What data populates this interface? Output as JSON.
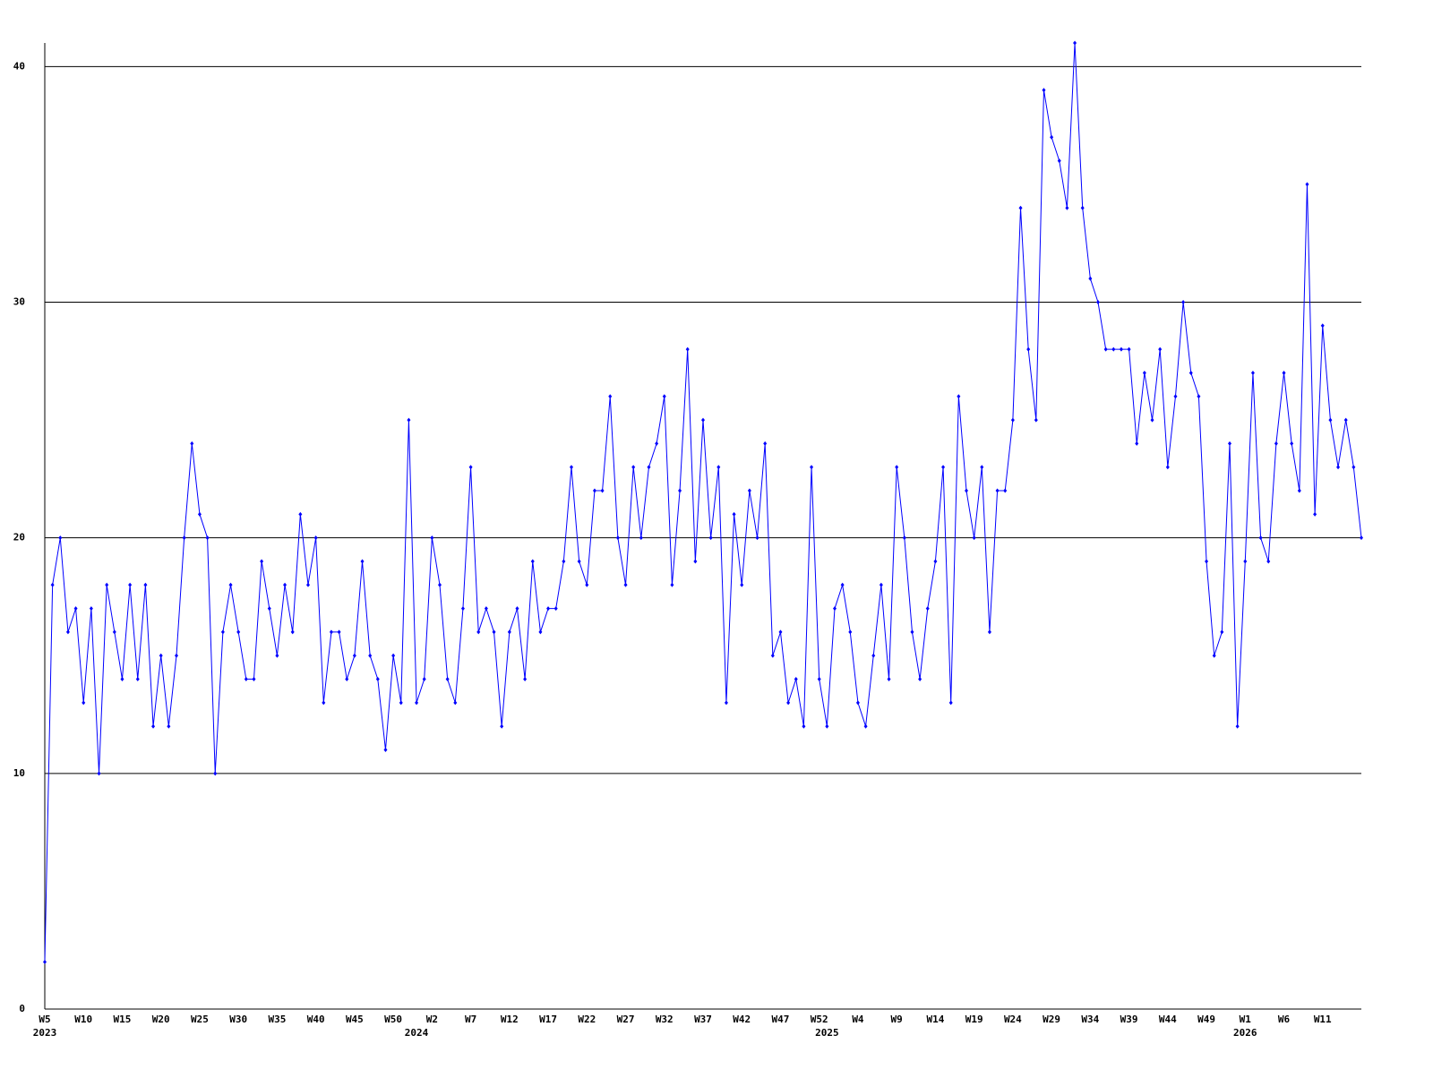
{
  "chart_data": {
    "type": "line",
    "categories": [
      "W5",
      null,
      null,
      null,
      null,
      "W10",
      null,
      null,
      null,
      null,
      "W15",
      null,
      null,
      null,
      null,
      "W20",
      null,
      null,
      null,
      null,
      "W25",
      null,
      null,
      null,
      null,
      "W30",
      null,
      null,
      null,
      null,
      "W35",
      null,
      null,
      null,
      null,
      "W40",
      null,
      null,
      null,
      null,
      "W45",
      null,
      null,
      null,
      null,
      "W50",
      null,
      null,
      null,
      null,
      "W2",
      null,
      null,
      null,
      null,
      "W7",
      null,
      null,
      null,
      null,
      "W12",
      null,
      null,
      null,
      null,
      "W17",
      null,
      null,
      null,
      null,
      "W22",
      null,
      null,
      null,
      null,
      "W27",
      null,
      null,
      null,
      null,
      "W32",
      null,
      null,
      null,
      null,
      "W37",
      null,
      null,
      null,
      null,
      "W42",
      null,
      null,
      null,
      null,
      "W47",
      null,
      null,
      null,
      null,
      "W52",
      null,
      null,
      null,
      null,
      "W4",
      null,
      null,
      null,
      null,
      "W9",
      null,
      null,
      null,
      null,
      "W14",
      null,
      null,
      null,
      null,
      "W19",
      null,
      null,
      null,
      null,
      "W24",
      null,
      null,
      null,
      null,
      "W29",
      null,
      null,
      null,
      null,
      "W34",
      null,
      null,
      null,
      null,
      "W39",
      null,
      null,
      null,
      null,
      "W44",
      null,
      null,
      null,
      null,
      "W49",
      null,
      null,
      null,
      null,
      "W1",
      null,
      null,
      null,
      null,
      "W6",
      null,
      null,
      null,
      null,
      "W11",
      null,
      null,
      null,
      null,
      null
    ],
    "years": [
      "2023",
      null,
      null,
      null,
      null,
      null,
      null,
      null,
      null,
      null,
      null,
      null,
      null,
      null,
      null,
      null,
      null,
      null,
      null,
      null,
      null,
      null,
      null,
      null,
      null,
      null,
      null,
      null,
      null,
      null,
      null,
      null,
      null,
      null,
      null,
      null,
      null,
      null,
      null,
      null,
      null,
      null,
      null,
      null,
      null,
      null,
      null,
      null,
      "2024",
      null,
      null,
      null,
      null,
      null,
      null,
      null,
      null,
      null,
      null,
      null,
      null,
      null,
      null,
      null,
      null,
      null,
      null,
      null,
      null,
      null,
      null,
      null,
      null,
      null,
      null,
      null,
      null,
      null,
      null,
      null,
      null,
      null,
      null,
      null,
      null,
      null,
      null,
      null,
      null,
      null,
      null,
      null,
      null,
      null,
      null,
      null,
      null,
      null,
      null,
      null,
      null,
      "2025",
      null,
      null,
      null,
      null,
      null,
      null,
      null,
      null,
      null,
      null,
      null,
      null,
      null,
      null,
      null,
      null,
      null,
      null,
      null,
      null,
      null,
      null,
      null,
      null,
      null,
      null,
      null,
      null,
      null,
      null,
      null,
      null,
      null,
      null,
      null,
      null,
      null,
      null,
      null,
      null,
      null,
      null,
      null,
      null,
      null,
      null,
      null,
      null,
      null,
      null,
      null,
      null,
      null,
      "2026",
      null,
      null,
      null,
      null,
      null,
      null,
      null,
      null,
      null,
      null,
      null,
      null,
      null,
      null,
      null
    ],
    "series": [
      {
        "color": "#0000ff",
        "values": [
          2,
          18,
          20,
          16,
          17,
          13,
          17,
          10,
          18,
          16,
          14,
          18,
          14,
          18,
          12,
          15,
          12,
          15,
          20,
          24,
          21,
          20,
          10,
          16,
          18,
          16,
          14,
          14,
          19,
          17,
          15,
          18,
          16,
          21,
          18,
          20,
          13,
          16,
          16,
          14,
          15,
          19,
          15,
          14,
          11,
          15,
          13,
          25,
          13,
          14,
          20,
          18,
          14,
          13,
          17,
          23,
          16,
          17,
          16,
          12,
          16,
          17,
          14,
          19,
          16,
          17,
          17,
          19,
          23,
          19,
          18,
          22,
          22,
          26,
          20,
          18,
          23,
          20,
          23,
          24,
          26,
          18,
          22,
          28,
          19,
          25,
          20,
          23,
          13,
          21,
          18,
          22,
          20,
          24,
          15,
          16,
          13,
          14,
          12,
          23,
          14,
          12,
          17,
          18,
          16,
          13,
          12,
          15,
          18,
          14,
          23,
          20,
          16,
          14,
          17,
          19,
          23,
          13,
          26,
          22,
          20,
          23,
          16,
          22,
          22,
          25,
          34,
          28,
          25,
          39,
          37,
          36,
          34,
          41,
          34,
          31,
          30,
          28,
          28,
          28,
          28,
          24,
          27,
          25,
          28,
          23,
          26,
          30,
          27,
          26,
          19,
          15,
          16,
          24,
          12,
          19,
          27,
          20,
          19,
          24,
          27,
          24,
          22,
          35,
          21,
          29,
          25,
          23,
          25,
          23,
          20
        ]
      }
    ],
    "ylim": [
      0,
      41
    ],
    "yticks": [
      0,
      10,
      20,
      30,
      40
    ],
    "grid": true
  }
}
